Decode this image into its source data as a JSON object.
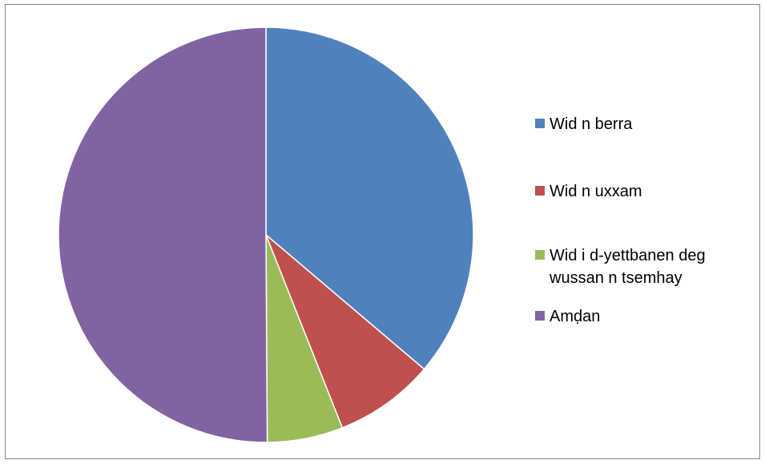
{
  "chart_data": {
    "type": "pie",
    "title": "",
    "start_angle_deg": 0,
    "direction": "clockwise",
    "slices": [
      {
        "label": "Wid n berra",
        "value": 36.2,
        "color": "#4F81BD"
      },
      {
        "label": "Wid n uxxam",
        "value": 7.8,
        "color": "#C0504D"
      },
      {
        "label": "Wid i d-yettbanen deg wussan n tsemhay",
        "value": 5.9,
        "color": "#9BBB59"
      },
      {
        "label": "Amḍan",
        "value": 50.1,
        "color": "#8064A2"
      }
    ],
    "legend_position": "right",
    "slice_border_color": "#FFFFFF"
  }
}
